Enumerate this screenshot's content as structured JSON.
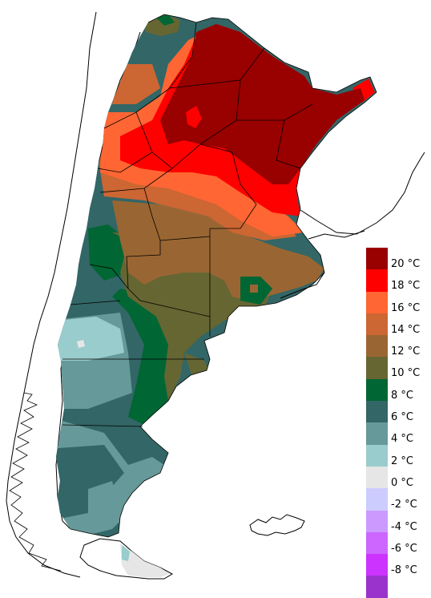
{
  "legend": {
    "entries": [
      {
        "label": "20 °C",
        "color": "#990000"
      },
      {
        "label": "18 °C",
        "color": "#ff0000"
      },
      {
        "label": "16 °C",
        "color": "#ff6633"
      },
      {
        "label": "14 °C",
        "color": "#cc6633"
      },
      {
        "label": "12 °C",
        "color": "#996633"
      },
      {
        "label": "10 °C",
        "color": "#666633"
      },
      {
        "label": "8 °C",
        "color": "#006633"
      },
      {
        "label": "6 °C",
        "color": "#336666"
      },
      {
        "label": "4 °C",
        "color": "#669999"
      },
      {
        "label": "2 °C",
        "color": "#99cccc"
      },
      {
        "label": "0 °C",
        "color": "#e6e6e6"
      },
      {
        "label": "-2 °C",
        "color": "#ccccff"
      },
      {
        "label": "-4 °C",
        "color": "#cc99ff"
      },
      {
        "label": "-6 °C",
        "color": "#cc66ff"
      },
      {
        "label": "-8 °C",
        "color": "#cc33ff"
      },
      {
        "label": "",
        "color": "#9933cc"
      }
    ]
  }
}
